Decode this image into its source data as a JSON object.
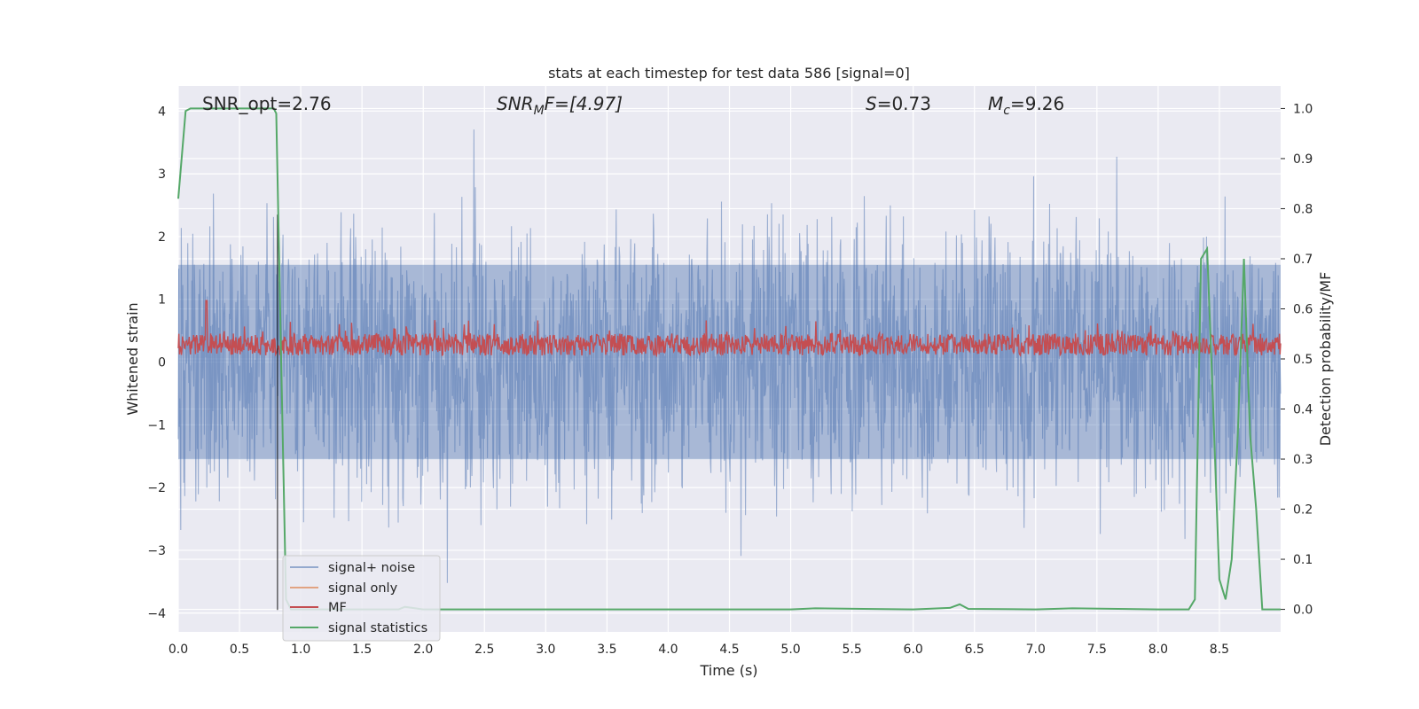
{
  "chart_data": {
    "type": "line",
    "title": "stats at each timestep for test data 586 [signal=0]",
    "xlabel": "Time (s)",
    "ylabel": "Whitened strain",
    "y2label": "Detection probability/MF",
    "xlim": [
      0.0,
      9.0
    ],
    "ylim": [
      -4.3,
      4.4
    ],
    "y2lim": [
      -0.045,
      1.045
    ],
    "xticks": [
      "0.0",
      "0.5",
      "1.0",
      "1.5",
      "2.0",
      "2.5",
      "3.0",
      "3.5",
      "4.0",
      "4.5",
      "5.0",
      "5.5",
      "6.0",
      "6.5",
      "7.0",
      "7.5",
      "8.0",
      "8.5"
    ],
    "yticks": [
      "4",
      "3",
      "2",
      "1",
      "0",
      "−1",
      "−2",
      "−3",
      "−4"
    ],
    "y2ticks": [
      "1.0",
      "0.9",
      "0.8",
      "0.7",
      "0.6",
      "0.5",
      "0.4",
      "0.3",
      "0.2",
      "0.1",
      "0.0"
    ],
    "grid": true,
    "legend_position": "lower-left",
    "annotations": {
      "snr_opt": "SNR_opt=2.76",
      "snr_mf_prefix": "SNR",
      "snr_mf_sub": "M",
      "snr_mf_suffix": "F=[4.97]",
      "s_prefix": "S",
      "s_suffix": "=0.73",
      "mc_prefix": "M",
      "mc_sub": "c",
      "mc_suffix": "=9.26"
    },
    "series": [
      {
        "name": "signal+ noise",
        "color": "#4c72b0",
        "axis": "left",
        "style": "noise band, amplitude roughly ±2.5 with spikes to ±4"
      },
      {
        "name": "signal only",
        "color": "#dd8452",
        "axis": "left",
        "values": []
      },
      {
        "name": "MF",
        "color": "#c44e52",
        "axis": "left",
        "style": "noisy trace between ~0.05 and ~0.7, spike ~1.0 at t≈0.23"
      },
      {
        "name": "signal statistics",
        "color": "#55a868",
        "axis": "right",
        "x": [
          0.0,
          0.06,
          0.1,
          0.2,
          0.4,
          0.6,
          0.78,
          0.8,
          0.84,
          0.88,
          0.92,
          1.2,
          1.5,
          1.8,
          1.85,
          2.0,
          3.0,
          4.0,
          5.0,
          5.2,
          6.0,
          6.3,
          6.38,
          6.45,
          7.0,
          7.3,
          8.0,
          8.25,
          8.3,
          8.35,
          8.4,
          8.45,
          8.5,
          8.55,
          8.6,
          8.65,
          8.7,
          8.75,
          8.8,
          8.85,
          8.9,
          8.95,
          9.0
        ],
        "values": [
          0.82,
          0.995,
          1.0,
          1.0,
          1.0,
          1.0,
          1.0,
          0.99,
          0.5,
          0.02,
          0.0,
          0.0,
          0.0,
          0.0,
          0.005,
          0.0,
          0.0,
          0.0,
          0.0,
          0.002,
          0.0,
          0.003,
          0.01,
          0.001,
          0.0,
          0.002,
          0.0,
          0.0,
          0.02,
          0.7,
          0.72,
          0.4,
          0.06,
          0.02,
          0.1,
          0.35,
          0.7,
          0.35,
          0.2,
          0.0,
          0.0,
          0.0,
          0.0
        ]
      }
    ],
    "vertical_line_x": 0.81,
    "colors": {
      "plot_bg": "#eaeaf2",
      "grid": "#ffffff",
      "noise": "#4c72b0",
      "mf": "#c44e52",
      "stat": "#55a868",
      "vline": "#000000"
    }
  }
}
